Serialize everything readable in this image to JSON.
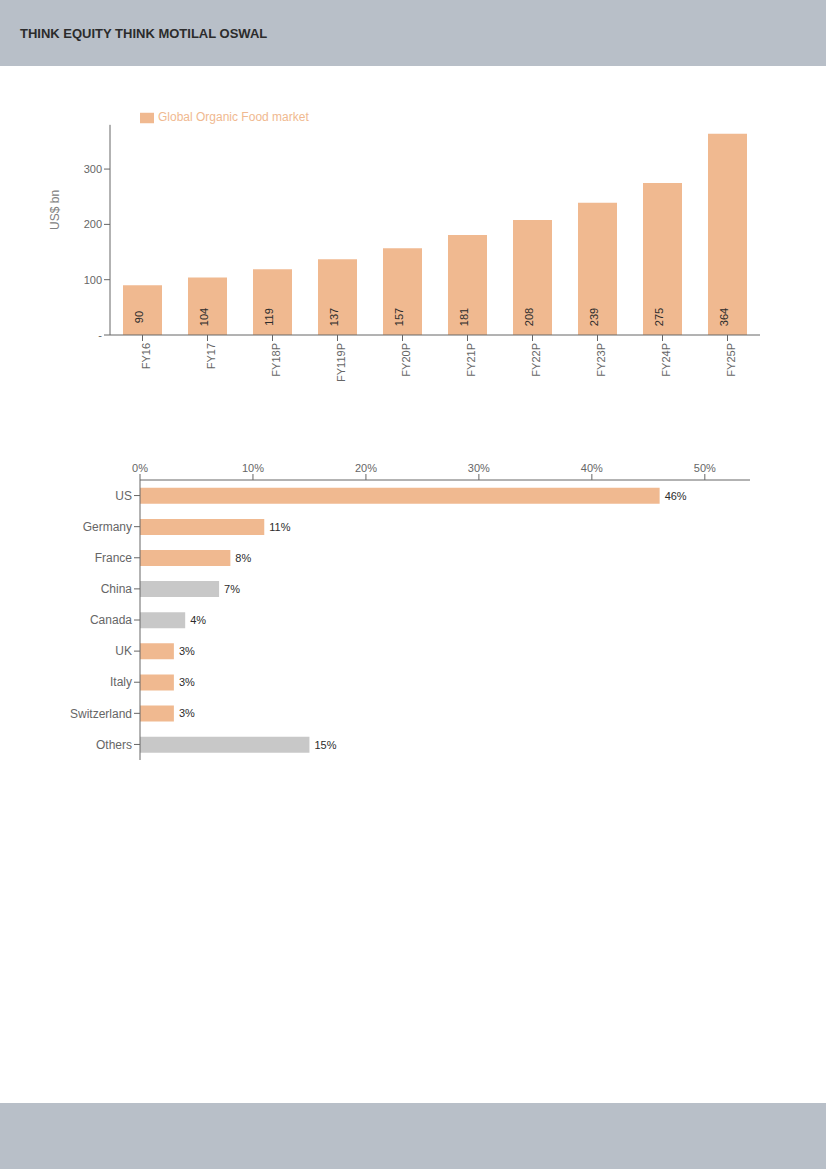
{
  "chart_data": [
    {
      "type": "bar",
      "annotations": [
        "THINK EQUITY THINK MOTILAL OSWAL"
      ],
      "categories": [
        "FY16",
        "FY17",
        "FY18P",
        "FY119P",
        "FY20P",
        "FY21P",
        "FY22P",
        "FY23P",
        "FY24P",
        "FY25P"
      ],
      "series": [
        {
          "name": "Global Organic Food market",
          "color": "#f0b990",
          "values": [
            90,
            104,
            119,
            137,
            157,
            181,
            208,
            239,
            275,
            364
          ]
        }
      ],
      "ylabel": "US$ bn",
      "ylim": [
        0,
        380
      ],
      "yticks": [
        {
          "value": 0,
          "label": "-"
        },
        100,
        200,
        300
      ],
      "legend": "upper left",
      "data_labels": true,
      "grid": false
    },
    {
      "type": "bar",
      "orientation": "horizontal",
      "categories": [
        "US",
        "Germany",
        "France",
        "China",
        "Canada",
        "UK",
        "Italy",
        "Switzerland",
        "Others"
      ],
      "values": [
        46,
        11,
        8,
        7,
        4,
        3,
        3,
        3,
        15
      ],
      "value_labels": [
        "46%",
        "11%",
        "8%",
        "7%",
        "4%",
        "3%",
        "3%",
        "3%",
        "15%"
      ],
      "colors": [
        "#f0b990",
        "#f0b990",
        "#f0b990",
        "#c8c8c8",
        "#c8c8c8",
        "#f0b990",
        "#f0b990",
        "#f0b990",
        "#c8c8c8"
      ],
      "xlim": [
        0,
        54
      ],
      "xticks": [
        {
          "value": 0,
          "label": "0%"
        },
        {
          "value": 10,
          "label": "10%"
        },
        {
          "value": 20,
          "label": "20%"
        },
        {
          "value": 30,
          "label": "30%"
        },
        {
          "value": 40,
          "label": "40%"
        },
        {
          "value": 50,
          "label": "50%"
        }
      ],
      "data_labels": true,
      "grid": false
    }
  ]
}
